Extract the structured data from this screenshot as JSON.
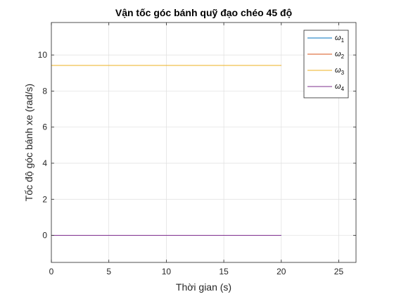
{
  "chart_data": {
    "type": "line",
    "title": "Vận tốc góc bánh quỹ đạo chéo 45 độ",
    "xlabel": "Thời gian (s)",
    "ylabel": "Tốc độ góc bánh xe (rad/s)",
    "xlim": [
      0,
      26.5
    ],
    "ylim": [
      -1.5,
      11.8
    ],
    "xticks": [
      0,
      5,
      10,
      15,
      20,
      25
    ],
    "yticks": [
      0,
      2,
      4,
      6,
      8,
      10
    ],
    "xtick_labels": [
      "0",
      "5",
      "10",
      "15",
      "20",
      "25"
    ],
    "ytick_labels": [
      "0",
      "2",
      "4",
      "6",
      "8",
      "10"
    ],
    "grid": true,
    "legend_position": "top-right",
    "series": [
      {
        "name": "ω",
        "subscript": "1",
        "color": "#0072BD",
        "x": [
          0,
          20
        ],
        "y": [
          0,
          0
        ]
      },
      {
        "name": "ω",
        "subscript": "2",
        "color": "#D95319",
        "x": [
          0,
          20
        ],
        "y": [
          9.42,
          9.42
        ]
      },
      {
        "name": "ω",
        "subscript": "3",
        "color": "#EDB120",
        "x": [
          0,
          20
        ],
        "y": [
          9.42,
          9.42
        ]
      },
      {
        "name": "ω",
        "subscript": "4",
        "color": "#7E2F8E",
        "x": [
          0,
          20
        ],
        "y": [
          0,
          0
        ]
      }
    ]
  }
}
